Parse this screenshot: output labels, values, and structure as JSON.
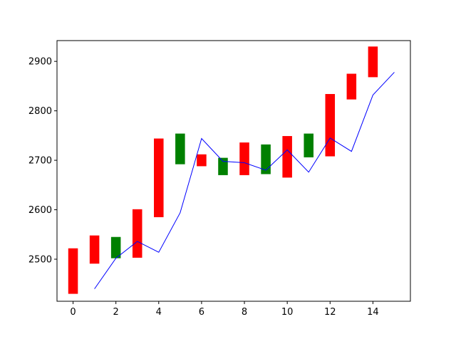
{
  "chart_data": {
    "type": "bar",
    "title": "",
    "xlabel": "",
    "ylabel": "",
    "xlim": [
      -0.75,
      15.75
    ],
    "ylim": [
      2415,
      2942
    ],
    "grid": false,
    "x_ticks": [
      0,
      2,
      4,
      6,
      8,
      10,
      12,
      14
    ],
    "y_ticks": [
      2500,
      2600,
      2700,
      2800,
      2900
    ],
    "colors": {
      "up": "#ff0000",
      "down": "#008000",
      "line": "#0000ff",
      "axis": "#000000"
    },
    "bars": [
      {
        "x": 0,
        "low": 2430,
        "high": 2522,
        "color": "#ff0000"
      },
      {
        "x": 1,
        "low": 2491,
        "high": 2548,
        "color": "#ff0000"
      },
      {
        "x": 2,
        "low": 2502,
        "high": 2545,
        "color": "#008000"
      },
      {
        "x": 3,
        "low": 2503,
        "high": 2601,
        "color": "#ff0000"
      },
      {
        "x": 4,
        "low": 2585,
        "high": 2744,
        "color": "#ff0000"
      },
      {
        "x": 5,
        "low": 2692,
        "high": 2754,
        "color": "#008000"
      },
      {
        "x": 6,
        "low": 2688,
        "high": 2712,
        "color": "#ff0000"
      },
      {
        "x": 7,
        "low": 2670,
        "high": 2705,
        "color": "#008000"
      },
      {
        "x": 8,
        "low": 2670,
        "high": 2736,
        "color": "#ff0000"
      },
      {
        "x": 9,
        "low": 2672,
        "high": 2732,
        "color": "#008000"
      },
      {
        "x": 10,
        "low": 2665,
        "high": 2749,
        "color": "#ff0000"
      },
      {
        "x": 11,
        "low": 2706,
        "high": 2754,
        "color": "#008000"
      },
      {
        "x": 12,
        "low": 2708,
        "high": 2834,
        "color": "#ff0000"
      },
      {
        "x": 13,
        "low": 2823,
        "high": 2875,
        "color": "#ff0000"
      },
      {
        "x": 14,
        "low": 2868,
        "high": 2930,
        "color": "#ff0000"
      }
    ],
    "bar_width": 0.45,
    "line": {
      "x": [
        1,
        2,
        3,
        4,
        5,
        6,
        7,
        8,
        9,
        10,
        11,
        12,
        13,
        14,
        15
      ],
      "y": [
        2440,
        2502,
        2536,
        2514,
        2594,
        2744,
        2698,
        2695,
        2680,
        2721,
        2676,
        2745,
        2718,
        2832,
        2878
      ]
    }
  }
}
